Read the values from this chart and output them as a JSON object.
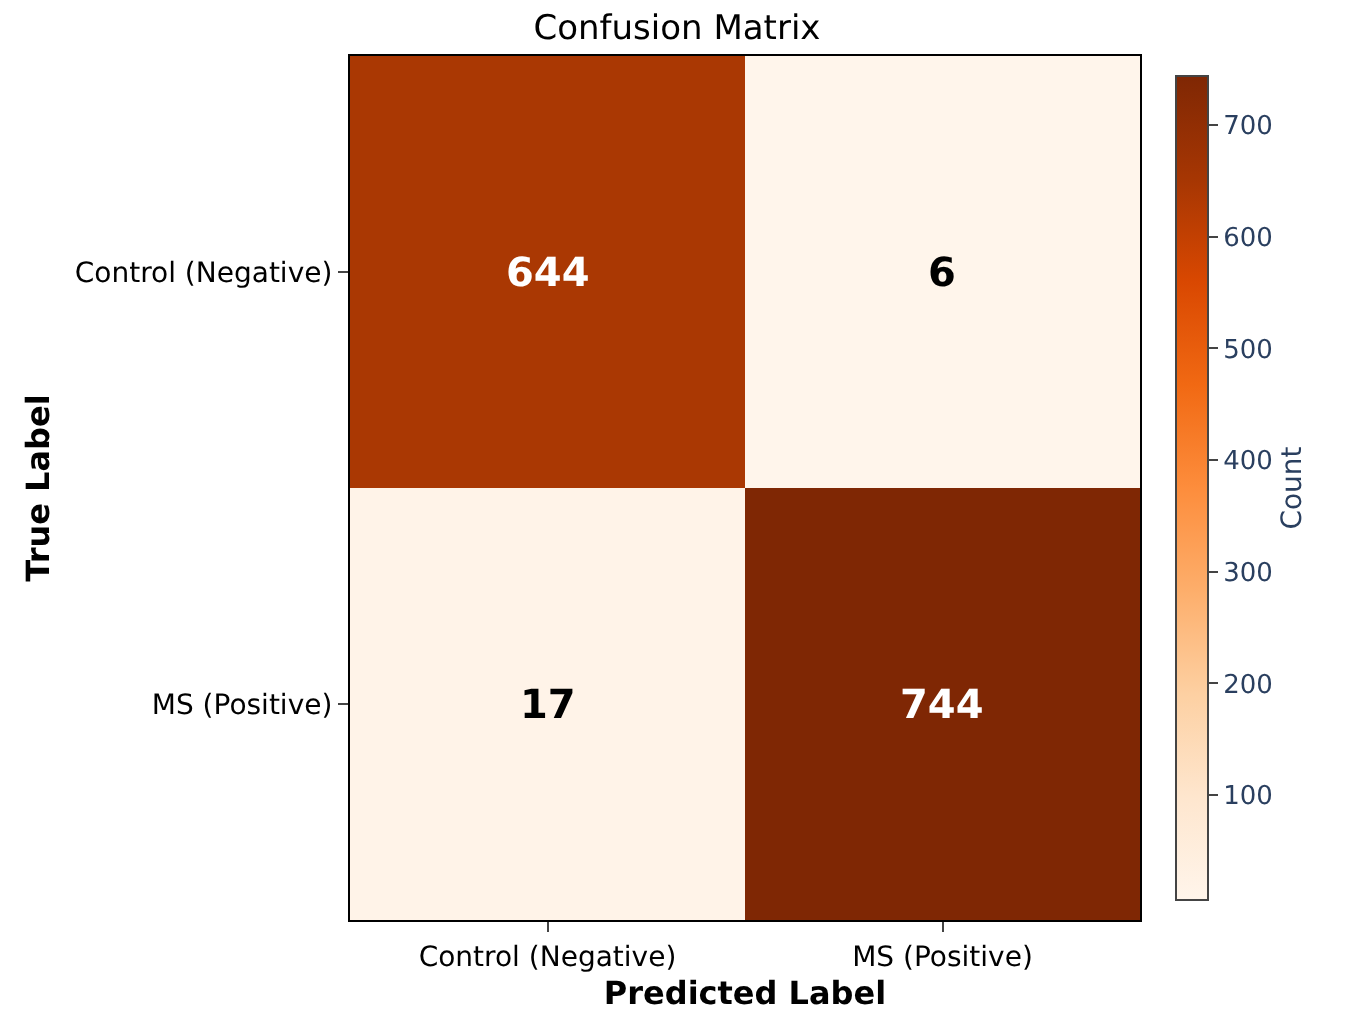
{
  "chart_data": {
    "type": "heatmap",
    "title": "Confusion Matrix",
    "xlabel": "Predicted Label",
    "ylabel": "True Label",
    "clabel": "Count",
    "categories": [
      "Control (Negative)",
      "MS (Positive)"
    ],
    "y_categories": [
      "Control (Negative)",
      "MS (Positive)"
    ],
    "cells": [
      [
        644,
        6
      ],
      [
        17,
        744
      ]
    ],
    "data_labels": true,
    "clim": [
      6,
      744
    ],
    "cticks": [
      100,
      200,
      300,
      400,
      500,
      600,
      700
    ]
  }
}
